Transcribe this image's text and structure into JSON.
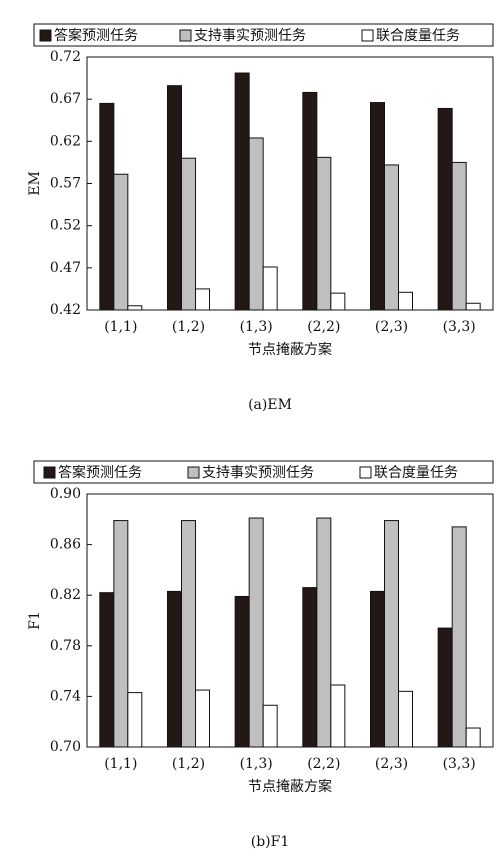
{
  "chart_data": [
    {
      "type": "bar",
      "caption": "(a)EM",
      "x_label": "节点掩蔽方案",
      "y_label": "EM",
      "categories": [
        "(1,1)",
        "(1,2)",
        "(1,3)",
        "(2,2)",
        "(2,3)",
        "(3,3)"
      ],
      "series": [
        {
          "name": "答案预测任务",
          "color": "#231815",
          "values": [
            0.665,
            0.686,
            0.701,
            0.678,
            0.666,
            0.659
          ]
        },
        {
          "name": "支持事实预测任务",
          "color": "#bfbfbf",
          "values": [
            0.581,
            0.6,
            0.624,
            0.601,
            0.592,
            0.595
          ]
        },
        {
          "name": "联合度量任务",
          "color": "#ffffff",
          "values": [
            0.425,
            0.445,
            0.471,
            0.44,
            0.441,
            0.428
          ]
        }
      ],
      "ylim": [
        0.42,
        0.72
      ],
      "yticks": [
        0.42,
        0.47,
        0.52,
        0.57,
        0.62,
        0.67,
        0.72
      ]
    },
    {
      "type": "bar",
      "caption": "(b)F1",
      "x_label": "节点掩蔽方案",
      "y_label": "F1",
      "categories": [
        "(1,1)",
        "(1,2)",
        "(1,3)",
        "(2,2)",
        "(2,3)",
        "(3,3)"
      ],
      "series": [
        {
          "name": "答案预测任务",
          "color": "#231815",
          "values": [
            0.822,
            0.823,
            0.819,
            0.826,
            0.823,
            0.794
          ]
        },
        {
          "name": "支持事实预测任务",
          "color": "#bfbfbf",
          "values": [
            0.879,
            0.879,
            0.881,
            0.881,
            0.879,
            0.874
          ]
        },
        {
          "name": "联合度量任务",
          "color": "#ffffff",
          "values": [
            0.743,
            0.745,
            0.733,
            0.749,
            0.744,
            0.715
          ]
        }
      ],
      "ylim": [
        0.7,
        0.9
      ],
      "yticks": [
        {
          "value": 0.7,
          "label": "0.70"
        },
        0.74,
        0.78,
        0.82,
        0.86,
        {
          "value": 0.9,
          "label": "0.90"
        }
      ]
    }
  ]
}
